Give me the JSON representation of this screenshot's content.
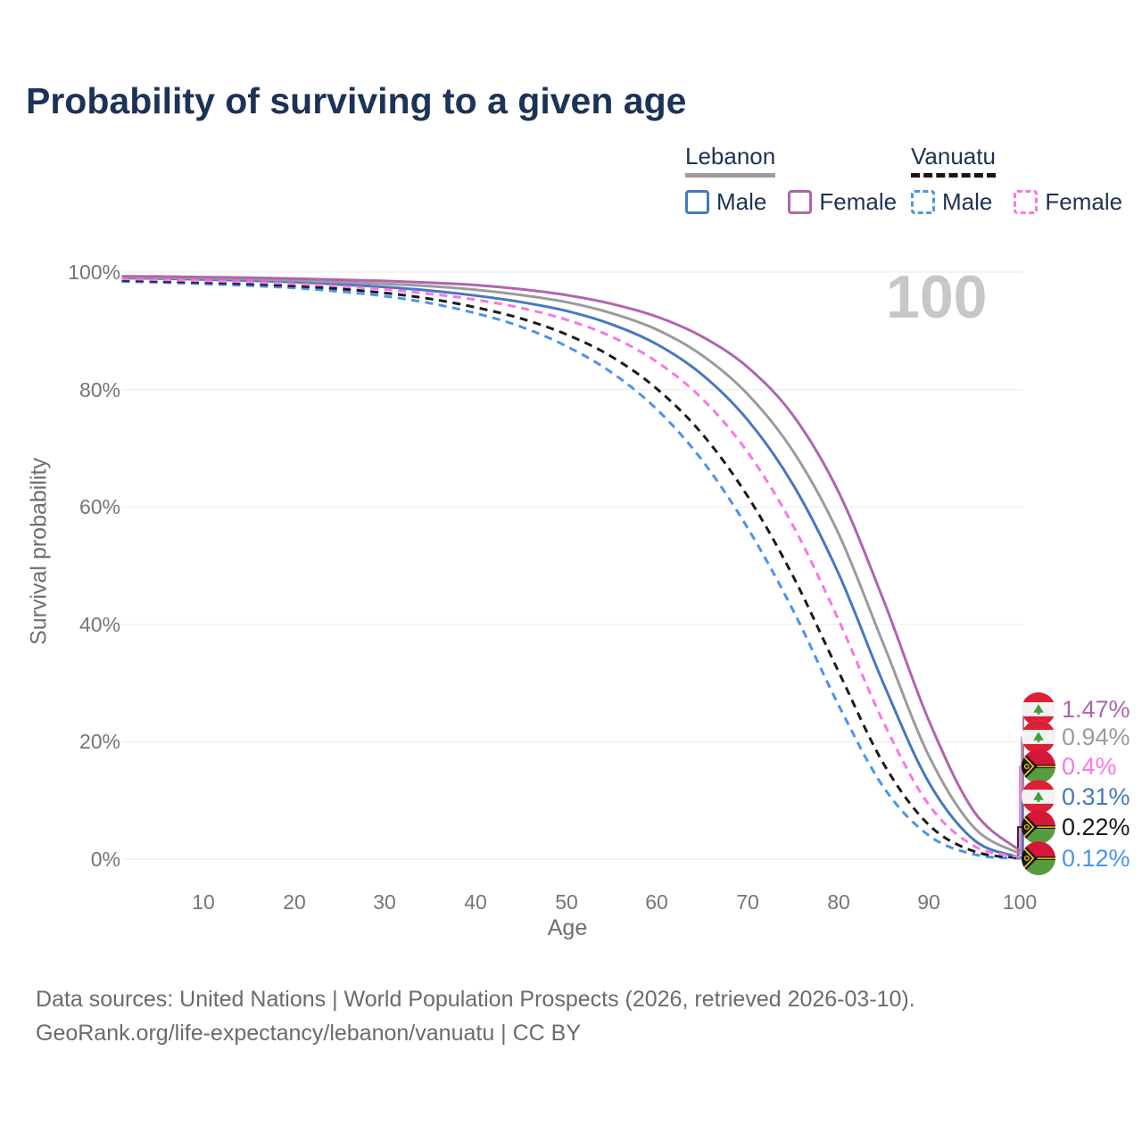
{
  "title": "Probability of surviving to a given age",
  "watermark": "100",
  "legend": {
    "groups": [
      {
        "label": "Lebanon",
        "line_style": "solid",
        "items": [
          {
            "label": "Male",
            "color": "#4678be"
          },
          {
            "label": "Female",
            "color": "#b164ae"
          }
        ]
      },
      {
        "label": "Vanuatu",
        "line_style": "dashed",
        "items": [
          {
            "label": "Male",
            "color": "#4b94ea"
          },
          {
            "label": "Female",
            "color": "#fb75e4"
          }
        ]
      }
    ]
  },
  "chart_data": {
    "type": "line",
    "title": "Probability of surviving to a given age",
    "xlabel": "Age",
    "ylabel": "Survival probability",
    "xlim": [
      1,
      100
    ],
    "ylim": [
      0,
      100
    ],
    "grid": "horizontal",
    "gridline_color": "#ededed",
    "x_tick_labels": [
      "10",
      "20",
      "30",
      "40",
      "50",
      "60",
      "70",
      "80",
      "90",
      "100"
    ],
    "y_tick_labels": [
      "100%",
      "80%",
      "60%",
      "40%",
      "20%",
      "0%"
    ],
    "x": [
      1,
      5,
      10,
      15,
      20,
      25,
      30,
      35,
      40,
      45,
      50,
      55,
      60,
      65,
      70,
      75,
      80,
      85,
      90,
      95,
      100
    ],
    "series": [
      {
        "name": "Lebanon Female",
        "country": "Lebanon",
        "sex": "Female",
        "line_style": "solid",
        "color": "#b164ae",
        "end_label": "1.47%",
        "flag": "lebanon",
        "values": [
          99.3,
          99.25,
          99.15,
          99.05,
          98.9,
          98.7,
          98.5,
          98.2,
          97.8,
          97.1,
          96.1,
          94.6,
          92.4,
          89.0,
          83.8,
          75.6,
          62.6,
          44.0,
          23.5,
          8.0,
          1.47
        ]
      },
      {
        "name": "Lebanon",
        "country": "Lebanon",
        "sex": "Both",
        "line_style": "solid",
        "color": "#9b9b9b",
        "end_label": "0.94%",
        "flag": "lebanon",
        "values": [
          99.15,
          99.05,
          98.95,
          98.8,
          98.6,
          98.3,
          98.0,
          97.6,
          97.0,
          96.1,
          94.9,
          93.0,
          90.2,
          85.8,
          79.2,
          69.5,
          55.5,
          36.5,
          17.5,
          5.3,
          0.94
        ]
      },
      {
        "name": "Vanuatu Female",
        "country": "Vanuatu",
        "sex": "Female",
        "line_style": "dashed",
        "color": "#fb75e4",
        "end_label": "0.4%",
        "flag": "vanuatu",
        "values": [
          98.85,
          98.7,
          98.5,
          98.3,
          98.0,
          97.6,
          97.05,
          96.3,
          95.3,
          93.9,
          91.9,
          89.0,
          84.7,
          78.4,
          69.3,
          56.8,
          40.8,
          23.2,
          9.2,
          2.2,
          0.4
        ]
      },
      {
        "name": "Lebanon Male",
        "country": "Lebanon",
        "sex": "Male",
        "line_style": "solid",
        "color": "#4678be",
        "end_label": "0.31%",
        "flag": "lebanon",
        "values": [
          99.0,
          98.9,
          98.75,
          98.55,
          98.3,
          97.9,
          97.45,
          96.85,
          96.0,
          94.9,
          93.4,
          91.1,
          87.7,
          82.5,
          74.8,
          63.8,
          48.7,
          29.8,
          13.0,
          3.2,
          0.31
        ]
      },
      {
        "name": "Vanuatu",
        "country": "Vanuatu",
        "sex": "Both",
        "line_style": "dashed",
        "color": "#1a1a1a",
        "end_label": "0.22%",
        "flag": "vanuatu",
        "values": [
          98.6,
          98.45,
          98.25,
          98.0,
          97.65,
          97.15,
          96.45,
          95.45,
          94.0,
          92.1,
          89.4,
          85.6,
          80.1,
          72.4,
          61.8,
          48.2,
          32.0,
          16.2,
          5.8,
          1.3,
          0.22
        ]
      },
      {
        "name": "Vanuatu Male",
        "country": "Vanuatu",
        "sex": "Male",
        "line_style": "dashed",
        "color": "#4b94ea",
        "end_label": "0.12%",
        "flag": "vanuatu",
        "values": [
          98.4,
          98.25,
          98.0,
          97.7,
          97.3,
          96.7,
          95.9,
          94.7,
          93.0,
          90.7,
          87.4,
          82.9,
          76.6,
          67.9,
          56.4,
          42.4,
          26.3,
          12.2,
          4.0,
          0.8,
          0.12
        ]
      }
    ]
  },
  "footer": {
    "line1": "Data sources: United Nations | World Population Prospects (2026, retrieved 2026-03-10).",
    "line2": "GeoRank.org/life-expectancy/lebanon/vanuatu | CC BY"
  }
}
